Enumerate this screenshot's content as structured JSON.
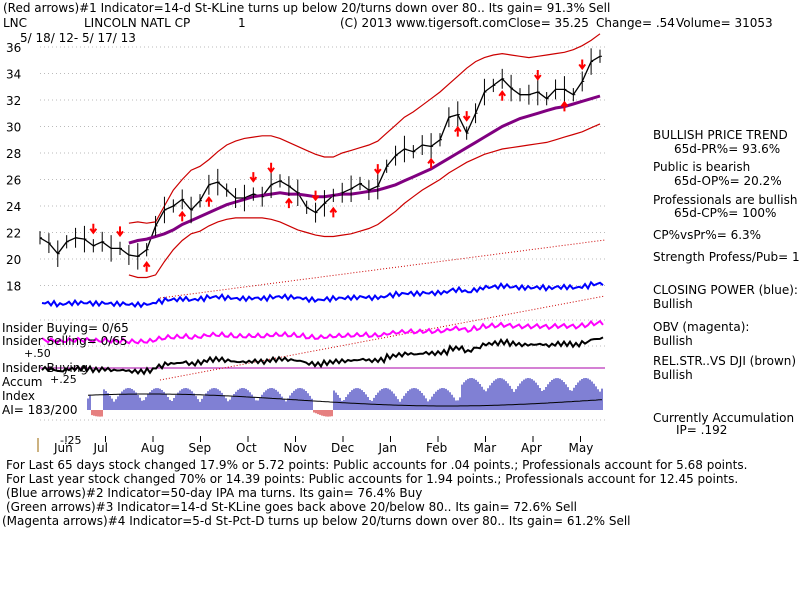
{
  "header": {
    "line1": "(Red arrows)#1 Indicator=14-d St-KLine turns up below 20/turns down over 80.. Its gain= 91.3% Sell",
    "ticker": "LNC",
    "company": "LINCOLN NATL CP",
    "chart_num": "1",
    "copyright": "(C) 2013 www.tigersoft.com",
    "close": "Close=  35.25",
    "change": "Change= .54",
    "volume": "Volume=  31053",
    "date_range": "5/ 18/ 12-  5/ 17/ 13"
  },
  "left_labels": {
    "insider_buying": "Insider Buying= 0/65",
    "insider_selling": "Insider Selling= 0/65",
    "insider_buying2": "Insider Buying",
    "plus50": "+.50",
    "accum": "Accum",
    "plus25": "+.25",
    "index": "Index",
    "ai": "AI= 183/200",
    "minus25": "-.25"
  },
  "right_panel": {
    "bullish_trend": "BULLISH PRICE TREND",
    "pr": "65d-PR%= 93.6%",
    "public": "Public is bearish",
    "op": "65d-OP%= 20.2%",
    "prof": "Professionals are bullish",
    "cp": "65d-CP%= 100%",
    "cpvspr": "CP%vsPr%=  6.3%",
    "strength": "Strength Profess/Pub= 14",
    "closing_power": "CLOSING POWER (blue):",
    "cp_bullish": "Bullish",
    "obv": "OBV (magenta):",
    "obv_bullish": "Bullish",
    "relstr": "REL.STR..VS DJI (brown)",
    "relstr_bullish": "Bullish",
    "accum": "Currently Accumulation",
    "ip": "IP= .192"
  },
  "bottom": {
    "line1": "For Last 65 days stock changed  17.9% or  5.72 points:  Public accounts for  .04 points.;  Professionals account for  5.68 points.",
    "line2": "For Last year stock changed  70% or  14.39 points:  Public accounts for  1.94 points.;  Professionals account for  12.45 points.",
    "line3": "(Blue arrows)#2 Indicator=50-day IPA ma turns. Its gain= 76.4% Buy",
    "line4": "(Green arrows)#3 Indicator=14-d St-KLine goes back above 20/below 80.. Its gain= 72.6% Sell",
    "line5": "(Magenta arrows)#4 Indicator=5-d St-Pct-D turns up below 20/turns down over 80.. Its gain= 61.2% Sell"
  },
  "colors": {
    "price": "#000000",
    "band": "#cc0000",
    "ma": "#800080",
    "closing_power": "#0000ff",
    "obv": "#ff00ff",
    "relstr": "#000000",
    "accum_bars": "#0000aa",
    "accum_neg": "#cc0000",
    "arrows": "#ff0000"
  },
  "chart_data": {
    "type": "line",
    "title": "LINCOLN NATL CP",
    "xlabel": "",
    "ylabel": "",
    "ylim": [
      16.5,
      37
    ],
    "y_ticks": [
      18,
      20,
      22,
      24,
      26,
      28,
      30,
      32,
      34,
      36
    ],
    "x_ticks": [
      "Jun",
      "Jul",
      "Aug",
      "Sep",
      "Oct",
      "Nov",
      "Dec",
      "Jan",
      "Feb",
      "Mar",
      "Apr",
      "May"
    ],
    "x": [
      0,
      4,
      8,
      12,
      16,
      20,
      24,
      28,
      32,
      36,
      40,
      44,
      48,
      52,
      56,
      60,
      64,
      68,
      72,
      76,
      80,
      84,
      88,
      92,
      96,
      100,
      104,
      108,
      112,
      116,
      120,
      124,
      128,
      132,
      136,
      140,
      144,
      148,
      152,
      156,
      160,
      164,
      168,
      172,
      176,
      180,
      184,
      188,
      192,
      196,
      200,
      204,
      208,
      212,
      216,
      220,
      224,
      228,
      232,
      236,
      240,
      244,
      248,
      252
    ],
    "series": [
      {
        "name": "Close",
        "values": [
          21.6,
          21.2,
          20.4,
          21.3,
          21.6,
          21.5,
          21.0,
          21.3,
          20.8,
          20.8,
          20.3,
          20.2,
          20.7,
          22.5,
          23.7,
          24.0,
          24.5,
          23.7,
          24.4,
          25.6,
          25.8,
          25.2,
          24.6,
          24.6,
          24.9,
          24.7,
          25.6,
          25.9,
          25.5,
          25.0,
          23.9,
          23.5,
          24.2,
          24.8,
          25.0,
          25.3,
          25.7,
          25.2,
          25.5,
          27.0,
          27.8,
          28.3,
          28.1,
          28.6,
          28.5,
          29.0,
          30.7,
          30.9,
          29.5,
          31.0,
          32.6,
          33.1,
          33.6,
          32.9,
          32.4,
          32.4,
          32.6,
          32.1,
          32.8,
          32.8,
          32.4,
          33.4,
          34.9,
          35.3
        ]
      },
      {
        "name": "50-day MA",
        "values": [
          null,
          null,
          null,
          null,
          null,
          null,
          null,
          null,
          null,
          null,
          21.2,
          21.4,
          21.5,
          21.7,
          21.9,
          22.2,
          22.6,
          22.9,
          23.2,
          23.5,
          23.8,
          24.1,
          24.3,
          24.5,
          24.7,
          24.8,
          24.9,
          25.0,
          24.9,
          24.9,
          24.8,
          24.7,
          24.7,
          24.8,
          24.9,
          24.9,
          25.0,
          25.1,
          25.2,
          25.4,
          25.6,
          25.9,
          26.2,
          26.5,
          26.8,
          27.2,
          27.6,
          28.0,
          28.4,
          28.8,
          29.2,
          29.6,
          30.0,
          30.3,
          30.6,
          30.8,
          31.0,
          31.2,
          31.4,
          31.5,
          31.7,
          31.9,
          32.1,
          32.3
        ]
      },
      {
        "name": "Upper band",
        "values": [
          null,
          null,
          null,
          null,
          null,
          null,
          null,
          null,
          null,
          null,
          22.7,
          22.8,
          22.7,
          22.8,
          24.0,
          25.2,
          26.0,
          26.7,
          27.0,
          27.5,
          28.1,
          28.6,
          28.9,
          29.1,
          29.2,
          29.3,
          29.3,
          29.1,
          28.8,
          28.5,
          28.2,
          27.9,
          27.7,
          27.7,
          28.0,
          28.2,
          28.4,
          28.6,
          28.9,
          29.5,
          30.1,
          30.7,
          31.1,
          31.6,
          32.1,
          32.6,
          33.2,
          33.8,
          34.4,
          34.9,
          35.2,
          35.4,
          35.5,
          35.4,
          35.3,
          35.2,
          35.3,
          35.4,
          35.5,
          35.6,
          35.8,
          36.1,
          36.5,
          37.0
        ]
      },
      {
        "name": "Lower band",
        "values": [
          null,
          null,
          null,
          null,
          null,
          null,
          null,
          null,
          null,
          null,
          18.8,
          18.6,
          18.6,
          18.8,
          19.8,
          20.7,
          21.4,
          21.9,
          22.1,
          22.5,
          22.8,
          23.0,
          23.1,
          23.1,
          23.1,
          23.1,
          23.0,
          22.8,
          22.5,
          22.2,
          22.0,
          21.8,
          21.7,
          21.7,
          21.8,
          21.9,
          22.1,
          22.3,
          22.6,
          23.1,
          23.6,
          24.2,
          24.7,
          25.2,
          25.6,
          26.0,
          26.5,
          26.9,
          27.3,
          27.6,
          27.9,
          28.1,
          28.3,
          28.4,
          28.5,
          28.6,
          28.7,
          28.8,
          29.0,
          29.2,
          29.4,
          29.6,
          29.9,
          30.2
        ]
      }
    ]
  }
}
